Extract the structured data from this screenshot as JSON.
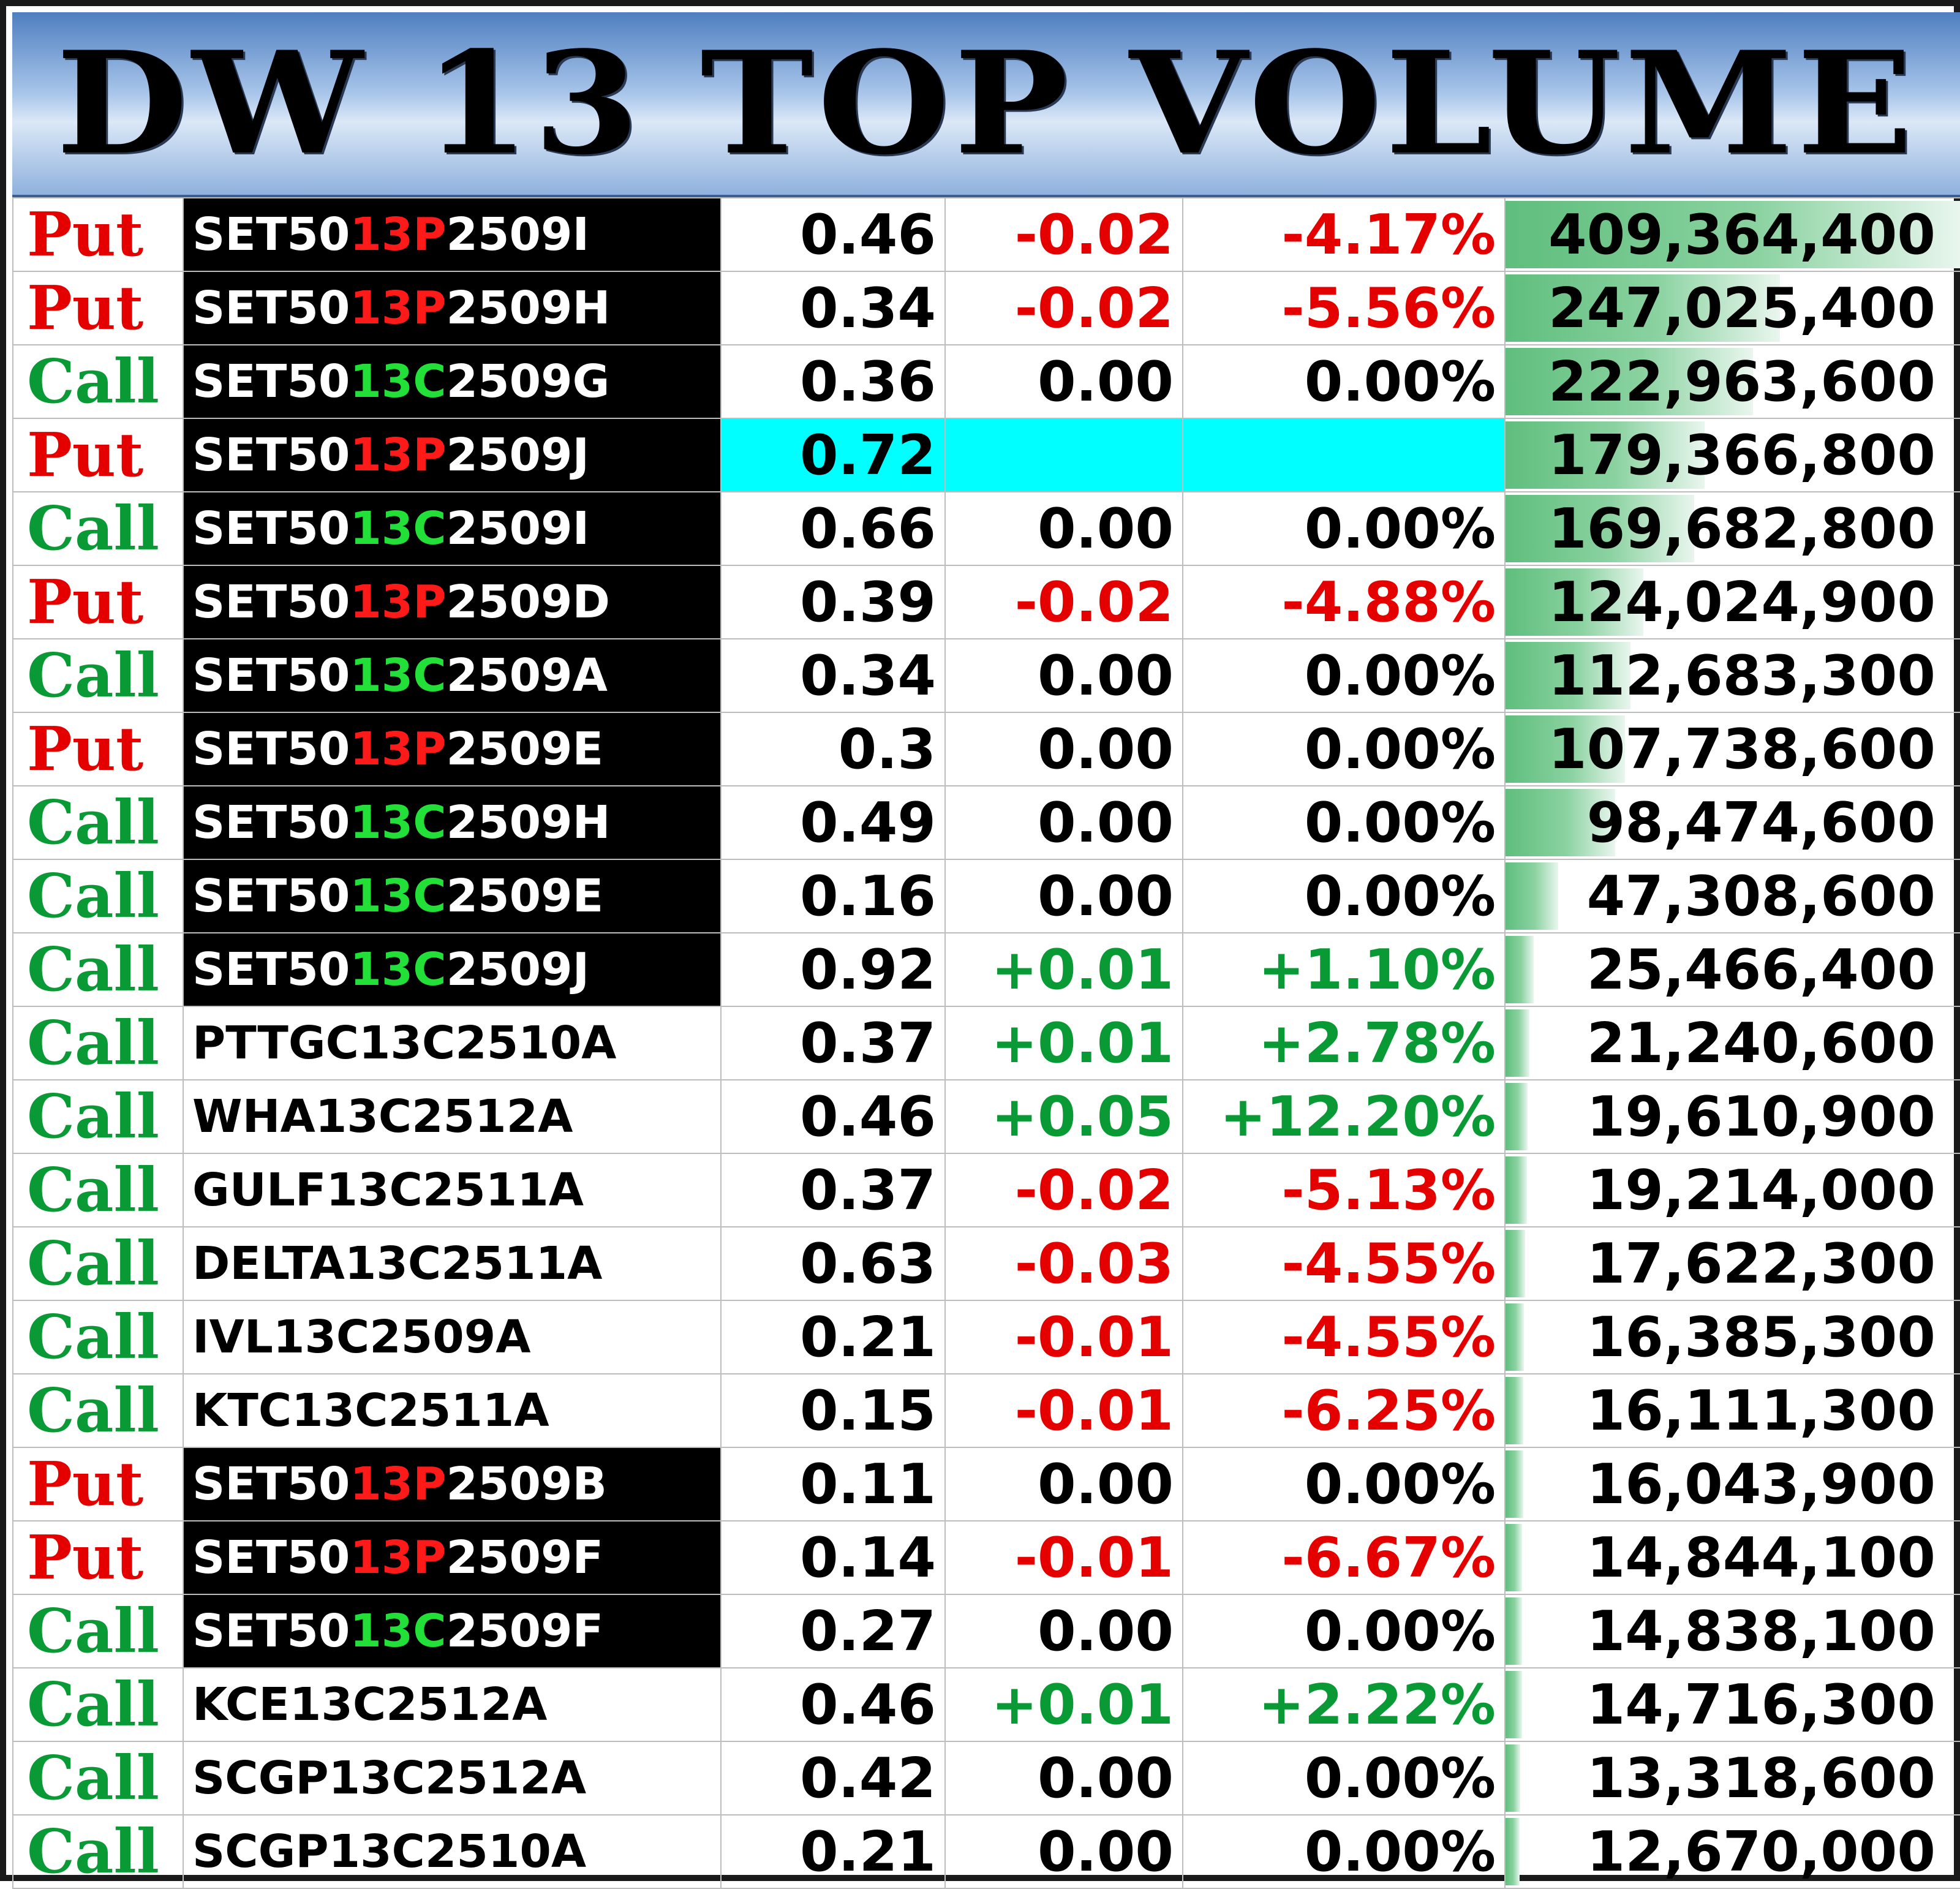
{
  "title": "DW 13 TOP VOLUME",
  "max_volume": 409364400,
  "rows": [
    {
      "type": "Put",
      "sym_pre": "SET50",
      "sym_mid": "13P",
      "sym_post": "2509I",
      "dark": true,
      "price": "0.46",
      "change": "-0.02",
      "pct": "-4.17%",
      "volume": "409,364,400",
      "volume_value": 409364400,
      "highlight": false
    },
    {
      "type": "Put",
      "sym_pre": "SET50",
      "sym_mid": "13P",
      "sym_post": "2509H",
      "dark": true,
      "price": "0.34",
      "change": "-0.02",
      "pct": "-5.56%",
      "volume": "247,025,400",
      "volume_value": 247025400,
      "highlight": false
    },
    {
      "type": "Call",
      "sym_pre": "SET50",
      "sym_mid": "13C",
      "sym_post": "2509G",
      "dark": true,
      "price": "0.36",
      "change": "0.00",
      "pct": "0.00%",
      "volume": "222,963,600",
      "volume_value": 222963600,
      "highlight": false
    },
    {
      "type": "Put",
      "sym_pre": "SET50",
      "sym_mid": "13P",
      "sym_post": "2509J",
      "dark": true,
      "price": "0.72",
      "change": "",
      "pct": "",
      "volume": "179,366,800",
      "volume_value": 179366800,
      "highlight": true
    },
    {
      "type": "Call",
      "sym_pre": "SET50",
      "sym_mid": "13C",
      "sym_post": "2509I",
      "dark": true,
      "price": "0.66",
      "change": "0.00",
      "pct": "0.00%",
      "volume": "169,682,800",
      "volume_value": 169682800,
      "highlight": false
    },
    {
      "type": "Put",
      "sym_pre": "SET50",
      "sym_mid": "13P",
      "sym_post": "2509D",
      "dark": true,
      "price": "0.39",
      "change": "-0.02",
      "pct": "-4.88%",
      "volume": "124,024,900",
      "volume_value": 124024900,
      "highlight": false
    },
    {
      "type": "Call",
      "sym_pre": "SET50",
      "sym_mid": "13C",
      "sym_post": "2509A",
      "dark": true,
      "price": "0.34",
      "change": "0.00",
      "pct": "0.00%",
      "volume": "112,683,300",
      "volume_value": 112683300,
      "highlight": false
    },
    {
      "type": "Put",
      "sym_pre": "SET50",
      "sym_mid": "13P",
      "sym_post": "2509E",
      "dark": true,
      "price": "0.3",
      "change": "0.00",
      "pct": "0.00%",
      "volume": "107,738,600",
      "volume_value": 107738600,
      "highlight": false
    },
    {
      "type": "Call",
      "sym_pre": "SET50",
      "sym_mid": "13C",
      "sym_post": "2509H",
      "dark": true,
      "price": "0.49",
      "change": "0.00",
      "pct": "0.00%",
      "volume": "98,474,600",
      "volume_value": 98474600,
      "highlight": false
    },
    {
      "type": "Call",
      "sym_pre": "SET50",
      "sym_mid": "13C",
      "sym_post": "2509E",
      "dark": true,
      "price": "0.16",
      "change": "0.00",
      "pct": "0.00%",
      "volume": "47,308,600",
      "volume_value": 47308600,
      "highlight": false
    },
    {
      "type": "Call",
      "sym_pre": "SET50",
      "sym_mid": "13C",
      "sym_post": "2509J",
      "dark": true,
      "price": "0.92",
      "change": "+0.01",
      "pct": "+1.10%",
      "volume": "25,466,400",
      "volume_value": 25466400,
      "highlight": false
    },
    {
      "type": "Call",
      "sym_pre": "PTTGC13C2510A",
      "sym_mid": "",
      "sym_post": "",
      "dark": false,
      "price": "0.37",
      "change": "+0.01",
      "pct": "+2.78%",
      "volume": "21,240,600",
      "volume_value": 21240600,
      "highlight": false
    },
    {
      "type": "Call",
      "sym_pre": "WHA13C2512A",
      "sym_mid": "",
      "sym_post": "",
      "dark": false,
      "price": "0.46",
      "change": "+0.05",
      "pct": "+12.20%",
      "volume": "19,610,900",
      "volume_value": 19610900,
      "highlight": false
    },
    {
      "type": "Call",
      "sym_pre": "GULF13C2511A",
      "sym_mid": "",
      "sym_post": "",
      "dark": false,
      "price": "0.37",
      "change": "-0.02",
      "pct": "-5.13%",
      "volume": "19,214,000",
      "volume_value": 19214000,
      "highlight": false
    },
    {
      "type": "Call",
      "sym_pre": "DELTA13C2511A",
      "sym_mid": "",
      "sym_post": "",
      "dark": false,
      "price": "0.63",
      "change": "-0.03",
      "pct": "-4.55%",
      "volume": "17,622,300",
      "volume_value": 17622300,
      "highlight": false
    },
    {
      "type": "Call",
      "sym_pre": "IVL13C2509A",
      "sym_mid": "",
      "sym_post": "",
      "dark": false,
      "price": "0.21",
      "change": "-0.01",
      "pct": "-4.55%",
      "volume": "16,385,300",
      "volume_value": 16385300,
      "highlight": false
    },
    {
      "type": "Call",
      "sym_pre": "KTC13C2511A",
      "sym_mid": "",
      "sym_post": "",
      "dark": false,
      "price": "0.15",
      "change": "-0.01",
      "pct": "-6.25%",
      "volume": "16,111,300",
      "volume_value": 16111300,
      "highlight": false
    },
    {
      "type": "Put",
      "sym_pre": "SET50",
      "sym_mid": "13P",
      "sym_post": "2509B",
      "dark": true,
      "price": "0.11",
      "change": "0.00",
      "pct": "0.00%",
      "volume": "16,043,900",
      "volume_value": 16043900,
      "highlight": false
    },
    {
      "type": "Put",
      "sym_pre": "SET50",
      "sym_mid": "13P",
      "sym_post": "2509F",
      "dark": true,
      "price": "0.14",
      "change": "-0.01",
      "pct": "-6.67%",
      "volume": "14,844,100",
      "volume_value": 14844100,
      "highlight": false
    },
    {
      "type": "Call",
      "sym_pre": "SET50",
      "sym_mid": "13C",
      "sym_post": "2509F",
      "dark": true,
      "price": "0.27",
      "change": "0.00",
      "pct": "0.00%",
      "volume": "14,838,100",
      "volume_value": 14838100,
      "highlight": false
    },
    {
      "type": "Call",
      "sym_pre": "KCE13C2512A",
      "sym_mid": "",
      "sym_post": "",
      "dark": false,
      "price": "0.46",
      "change": "+0.01",
      "pct": "+2.22%",
      "volume": "14,716,300",
      "volume_value": 14716300,
      "highlight": false
    },
    {
      "type": "Call",
      "sym_pre": "SCGP13C2512A",
      "sym_mid": "",
      "sym_post": "",
      "dark": false,
      "price": "0.42",
      "change": "0.00",
      "pct": "0.00%",
      "volume": "13,318,600",
      "volume_value": 13318600,
      "highlight": false
    },
    {
      "type": "Call",
      "sym_pre": "SCGP13C2510A",
      "sym_mid": "",
      "sym_post": "",
      "dark": false,
      "price": "0.21",
      "change": "0.00",
      "pct": "0.00%",
      "volume": "12,670,000",
      "volume_value": 12670000,
      "highlight": false
    }
  ]
}
